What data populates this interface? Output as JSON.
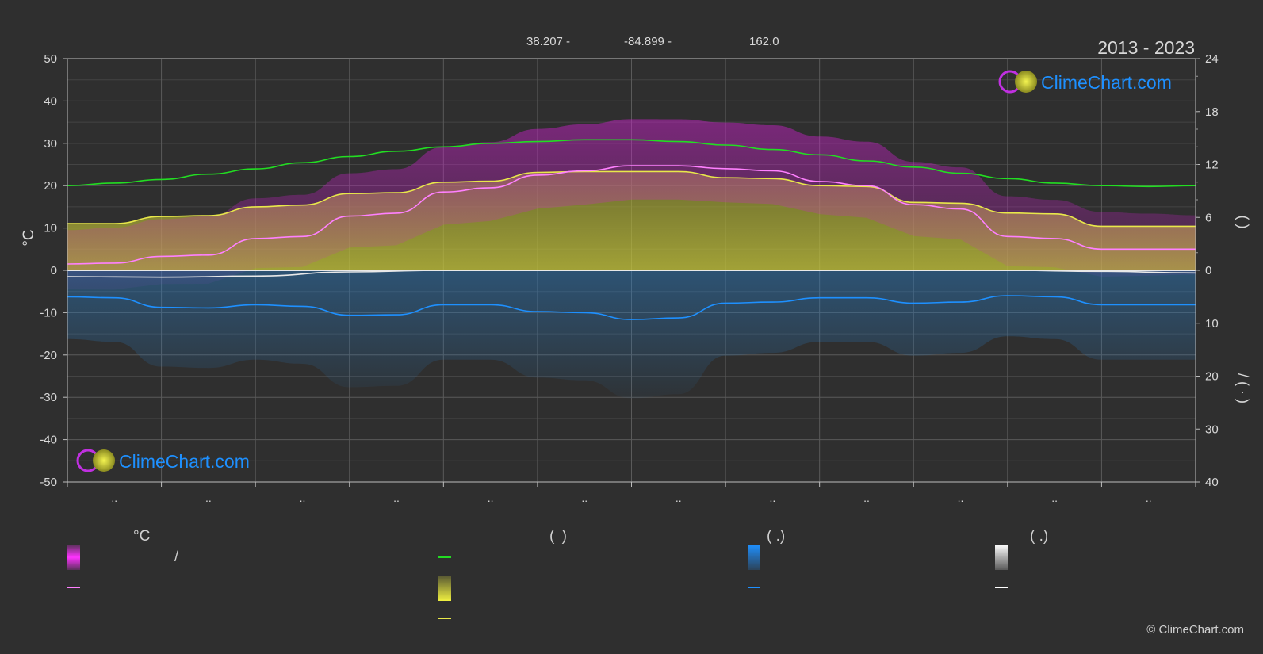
{
  "header": {
    "coord_lat": "38.207 -",
    "coord_lon": "-84.899 -",
    "elevation": "162.0",
    "period": "2013 - 2023"
  },
  "logo_text": "ClimeChart.com",
  "copyright": "© ClimeChart.com",
  "colors": {
    "background": "#2f2f2f",
    "daylight": "#22dd22",
    "sunshine_line": "#e8e84a",
    "sunshine_fill": "#b5b53a",
    "temp_max_band": "#c81ec8",
    "temp_line": "#ff80ff",
    "precip": "#1e90ff",
    "snow": "#e8e8e8",
    "logo_blue": "#1e90ff"
  },
  "chart_data": {
    "type": "area",
    "x_categories": [
      "..",
      "..",
      "..",
      "..",
      "..",
      "..",
      "..",
      "..",
      "..",
      "..",
      "..",
      ".."
    ],
    "left_axis": {
      "label": "°C",
      "ylim": [
        -50,
        50
      ],
      "ticks": [
        50,
        40,
        30,
        20,
        10,
        0,
        -10,
        -20,
        -30,
        -40,
        -50
      ]
    },
    "right_axis_top": {
      "label": "( )",
      "ylim": [
        0,
        24
      ],
      "ticks": [
        24,
        18,
        12,
        6,
        0
      ]
    },
    "right_axis_bottom": {
      "label": "/ ( · )",
      "ylim": [
        0,
        40
      ],
      "ticks": [
        0,
        10,
        20,
        30,
        40
      ]
    },
    "grid": true,
    "series": [
      {
        "key": "daylight",
        "axis": "right_top",
        "x": [
          0,
          0.5,
          1,
          1.5,
          2,
          2.5,
          3,
          3.5,
          4,
          4.5,
          5,
          5.5,
          6,
          6.5,
          7,
          7.5,
          8,
          8.5,
          9,
          9.5,
          10,
          10.5,
          11,
          11.5,
          12
        ],
        "values": [
          9.6,
          9.9,
          10.3,
          10.9,
          11.5,
          12.2,
          12.9,
          13.5,
          14.0,
          14.4,
          14.6,
          14.8,
          14.8,
          14.6,
          14.2,
          13.7,
          13.1,
          12.4,
          11.7,
          11.0,
          10.4,
          9.9,
          9.6,
          9.5,
          9.6
        ]
      },
      {
        "key": "sunshine",
        "axis": "right_top",
        "x": [
          0,
          0.5,
          1,
          1.5,
          2,
          2.5,
          3,
          3.5,
          4,
          4.5,
          5,
          5.5,
          6,
          6.5,
          7,
          7.5,
          8,
          8.5,
          9,
          9.5,
          10,
          10.5,
          11,
          11.5,
          12
        ],
        "values": [
          5.3,
          5.3,
          6.1,
          6.2,
          7.2,
          7.4,
          8.7,
          8.8,
          10.0,
          10.1,
          11.1,
          11.2,
          11.2,
          11.2,
          10.5,
          10.4,
          9.6,
          9.5,
          7.7,
          7.6,
          6.5,
          6.4,
          5.0,
          5.0,
          5.0
        ]
      },
      {
        "key": "temp_mean",
        "axis": "left",
        "x": [
          0,
          0.5,
          1,
          1.5,
          2,
          2.5,
          3,
          3.5,
          4,
          4.5,
          5,
          5.5,
          6,
          6.5,
          7,
          7.5,
          8,
          8.5,
          9,
          9.5,
          10,
          10.5,
          11,
          11.5,
          12
        ],
        "values": [
          1.5,
          1.7,
          3.3,
          3.6,
          7.5,
          8.0,
          12.8,
          13.5,
          18.5,
          19.5,
          22.5,
          23.5,
          24.7,
          24.7,
          24.0,
          23.5,
          21.0,
          20.0,
          15.5,
          14.5,
          8.0,
          7.5,
          5.0,
          5.0,
          5.0
        ]
      },
      {
        "key": "snow_mean",
        "axis": "right_bottom",
        "x": [
          0,
          1,
          2,
          3,
          4,
          5,
          6,
          7,
          8,
          9,
          10,
          11,
          12
        ],
        "values": [
          1.2,
          1.3,
          1.1,
          0.3,
          0,
          0,
          0,
          0,
          0,
          0,
          0,
          0.2,
          0.5
        ]
      },
      {
        "key": "precip_mean",
        "axis": "right_bottom",
        "x": [
          0,
          0.5,
          1,
          1.5,
          2,
          2.5,
          3,
          3.5,
          4,
          4.5,
          5,
          5.5,
          6,
          6.5,
          7,
          7.5,
          8,
          8.5,
          9,
          9.5,
          10,
          10.5,
          11,
          11.5,
          12
        ],
        "values": [
          5.0,
          5.2,
          7.0,
          7.1,
          6.5,
          6.8,
          8.5,
          8.4,
          6.5,
          6.5,
          7.8,
          8.0,
          9.3,
          9.0,
          6.2,
          6.0,
          5.2,
          5.2,
          6.2,
          6.0,
          4.8,
          5.0,
          6.5,
          6.5,
          6.5
        ]
      }
    ]
  },
  "legend": {
    "col1": {
      "title": "°C",
      "row1_sep": "/"
    },
    "col2": {
      "title": "(  )"
    },
    "col3": {
      "title": "(  .)"
    },
    "col4": {
      "title": "(  .)"
    }
  }
}
